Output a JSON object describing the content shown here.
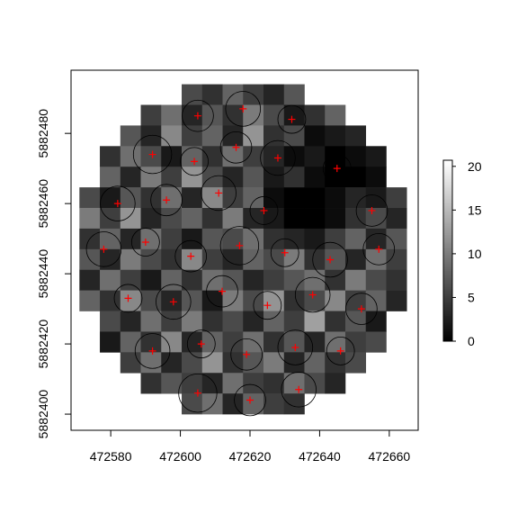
{
  "chart_data": {
    "type": "raster",
    "xlim": [
      472568.6,
      472668.3
    ],
    "ylim": [
      5882395.4,
      5882498
    ],
    "xticks": [
      472580,
      472600,
      472620,
      472640,
      472660
    ],
    "yticks": [
      5882400,
      5882420,
      5882440,
      5882460,
      5882480
    ],
    "raster_xlim": [
      472571,
      472665
    ],
    "raster_ylim": [
      5882400,
      5882494
    ],
    "zlim": [
      0,
      20.7
    ],
    "zticks": [
      0,
      5,
      10,
      15,
      20
    ],
    "values": [
      [
        null,
        null,
        null,
        null,
        null,
        6,
        4,
        8,
        5,
        3,
        7,
        null,
        null,
        null,
        null,
        null
      ],
      [
        null,
        null,
        null,
        5,
        9,
        3,
        7,
        4,
        10,
        6,
        2,
        4,
        8,
        null,
        null,
        null
      ],
      [
        null,
        null,
        7,
        3,
        11,
        5,
        8,
        3,
        12,
        4,
        6,
        1,
        2,
        3,
        null,
        null
      ],
      [
        null,
        4,
        9,
        6,
        2,
        8,
        4,
        9,
        5,
        3,
        1,
        2,
        0,
        1,
        2,
        null
      ],
      [
        null,
        8,
        3,
        10,
        5,
        12,
        6,
        3,
        7,
        2,
        4,
        1,
        0,
        0,
        1,
        null
      ],
      [
        6,
        2,
        7,
        4,
        9,
        3,
        11,
        5,
        8,
        1,
        0,
        0,
        1,
        3,
        2,
        5
      ],
      [
        10,
        5,
        12,
        3,
        6,
        8,
        4,
        10,
        3,
        2,
        0,
        0,
        1,
        4,
        6,
        3
      ],
      [
        4,
        8,
        3,
        9,
        5,
        2,
        7,
        6,
        9,
        4,
        3,
        2,
        5,
        8,
        3,
        7
      ],
      [
        7,
        3,
        10,
        6,
        4,
        11,
        5,
        3,
        8,
        6,
        10,
        4,
        7,
        3,
        9,
        5
      ],
      [
        3,
        9,
        5,
        2,
        8,
        4,
        9,
        7,
        3,
        5,
        7,
        9,
        4,
        10,
        6,
        4
      ],
      [
        8,
        4,
        11,
        6,
        3,
        7,
        2,
        10,
        6,
        12,
        4,
        6,
        11,
        5,
        8,
        3
      ],
      [
        null,
        6,
        3,
        9,
        5,
        10,
        4,
        6,
        3,
        8,
        5,
        13,
        4,
        7,
        2,
        null
      ],
      [
        null,
        2,
        8,
        4,
        11,
        3,
        8,
        5,
        9,
        4,
        7,
        3,
        9,
        5,
        6,
        null
      ],
      [
        null,
        null,
        5,
        9,
        3,
        6,
        12,
        4,
        7,
        10,
        3,
        8,
        4,
        6,
        null,
        null
      ],
      [
        null,
        null,
        null,
        4,
        7,
        5,
        3,
        9,
        5,
        4,
        9,
        6,
        3,
        null,
        null,
        null
      ],
      [
        null,
        null,
        null,
        null,
        null,
        6,
        9,
        3,
        8,
        5,
        4,
        null,
        null,
        null,
        null,
        null
      ]
    ],
    "trees": {
      "x": [
        472605,
        472618,
        472632,
        472592,
        472604,
        472616,
        472628,
        472645,
        472582,
        472596,
        472611,
        472624,
        472655,
        472578,
        472590,
        472603,
        472617,
        472630,
        472643,
        472657,
        472585,
        472598,
        472612,
        472625,
        472638,
        472652,
        472592,
        472606,
        472619,
        472633,
        472646,
        472605,
        472620,
        472634
      ],
      "y": [
        5882485,
        5882487,
        5882484,
        5882474,
        5882472,
        5882476,
        5882473,
        5882470,
        5882460,
        5882461,
        5882463,
        5882458,
        5882458,
        5882447,
        5882449,
        5882445,
        5882448,
        5882446,
        5882444,
        5882447,
        5882433,
        5882432,
        5882435,
        5882431,
        5882434,
        5882430,
        5882418,
        5882420,
        5882417,
        5882419,
        5882418,
        5882406,
        5882404,
        5882407
      ],
      "radius": [
        4.5,
        5,
        4,
        5.5,
        4,
        4.5,
        5,
        4,
        5,
        4.5,
        5,
        4,
        4.5,
        5,
        4,
        4.5,
        5.5,
        4,
        5,
        4.5,
        4,
        5,
        4.5,
        4,
        5,
        4.5,
        5,
        4,
        4.5,
        5,
        4,
        5.5,
        4.5,
        5
      ],
      "circle_color": "#000000",
      "marker_color": "#ff0000"
    }
  }
}
